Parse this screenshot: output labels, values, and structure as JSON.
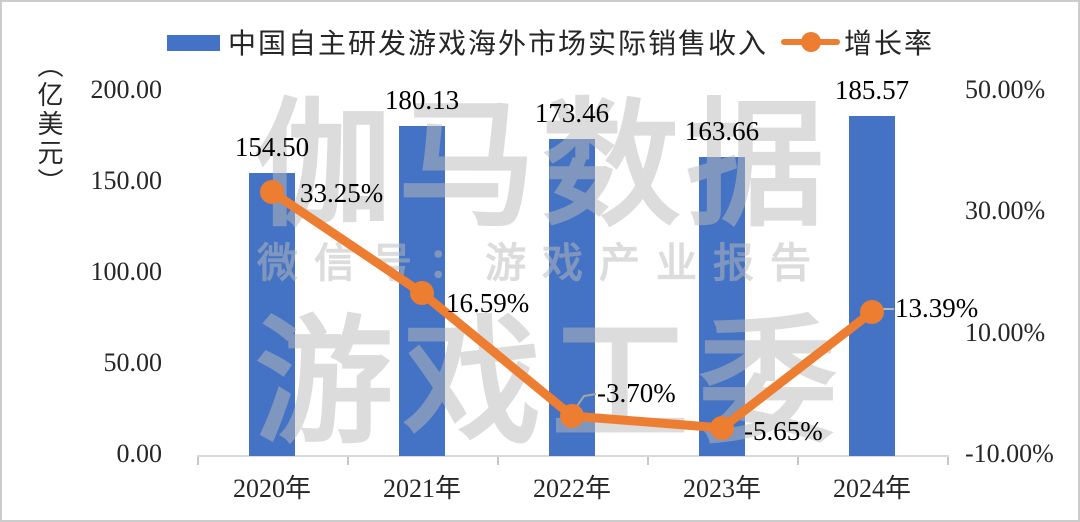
{
  "page": {
    "background": "#ffffff",
    "border_color": "#cccccc"
  },
  "legend": {
    "items": [
      {
        "label": "中国自主研发游戏海外市场实际销售收入",
        "marker": "bar-swatch",
        "color": "#4472C4"
      },
      {
        "label": "增长率",
        "marker": "line-with-dot",
        "color": "#ED7D31"
      }
    ]
  },
  "watermark": {
    "line1": "伽马数据",
    "line2": "微信号：游戏产业报告",
    "line3": "游戏工委"
  },
  "chart_data": {
    "type": "bar",
    "subtype": "bar-line-combo",
    "categories": [
      "2020年",
      "2021年",
      "2022年",
      "2023年",
      "2024年"
    ],
    "series": [
      {
        "name": "中国自主研发游戏海外市场实际销售收入",
        "type": "bar",
        "axis": "left",
        "unit": "亿美元",
        "color": "#4472C4",
        "values": [
          154.5,
          180.13,
          173.46,
          163.66,
          185.57
        ],
        "data_labels": [
          "154.50",
          "180.13",
          "173.46",
          "163.66",
          "185.57"
        ]
      },
      {
        "name": "增长率",
        "type": "line",
        "axis": "right",
        "unit": "%",
        "color": "#ED7D31",
        "values": [
          33.25,
          16.59,
          -3.7,
          -5.65,
          13.39
        ],
        "data_labels": [
          "33.25%",
          "16.59%",
          "-3.70%",
          "-5.65%",
          "13.39%"
        ]
      }
    ],
    "left_axis": {
      "title": "（亿美元）",
      "min": 0,
      "max": 200,
      "ticks": [
        200,
        150,
        100,
        50,
        0
      ],
      "tick_labels": [
        "200.00",
        "150.00",
        "100.00",
        "50.00",
        "0.00"
      ]
    },
    "right_axis": {
      "min": -10,
      "max": 50,
      "ticks": [
        50,
        30,
        10,
        -10
      ],
      "tick_labels": [
        "50.00%",
        "30.00%",
        "10.00%",
        "-10.00%"
      ]
    },
    "grid": false,
    "legend_position": "top"
  }
}
